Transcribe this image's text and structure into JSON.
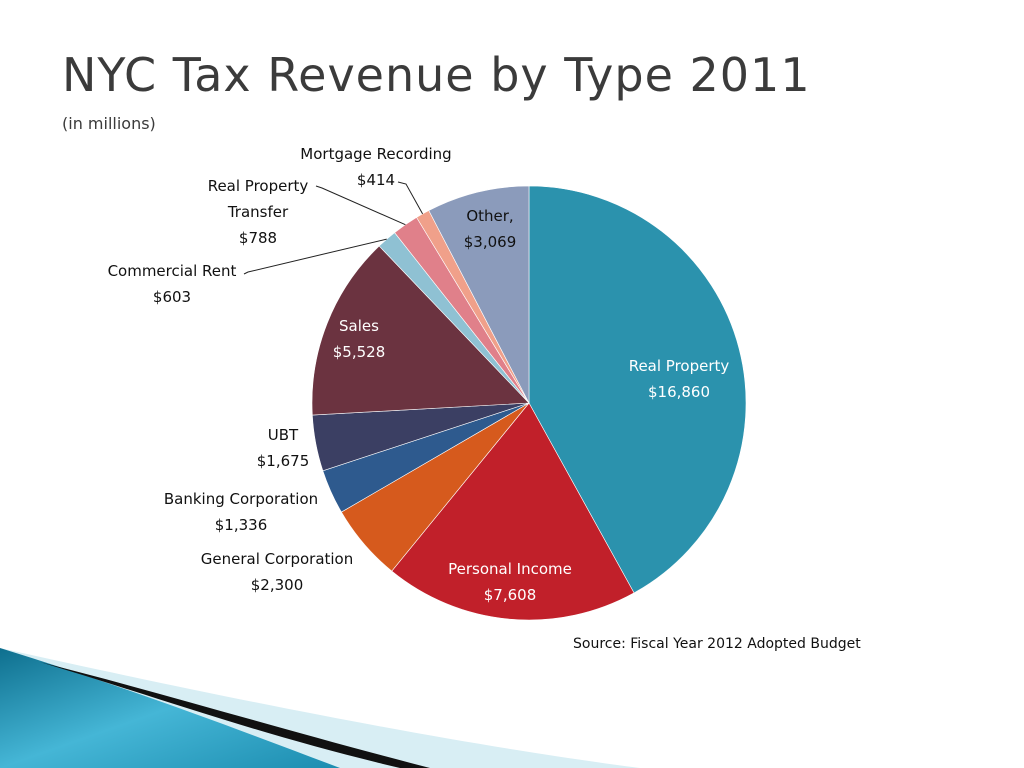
{
  "slide": {
    "title": "NYC Tax Revenue by Type 2011",
    "subtitle": "(in millions)",
    "source": "Source: Fiscal Year 2012 Adopted Budget"
  },
  "chart_data": {
    "type": "pie",
    "title": "NYC Tax Revenue by Type 2011",
    "unit": "$ millions",
    "start_angle": "12 o'clock, clockwise",
    "slices": [
      {
        "label": "Real Property",
        "value": 16860,
        "display": "$16,860",
        "color": "#2b92ad"
      },
      {
        "label": "Personal Income",
        "value": 7608,
        "display": "$7,608",
        "color": "#c1202a"
      },
      {
        "label": "General Corporation",
        "value": 2300,
        "display": "$2,300",
        "color": "#d65a1d"
      },
      {
        "label": "Banking Corporation",
        "value": 1336,
        "display": "$1,336",
        "color": "#2e5a8e"
      },
      {
        "label": "UBT",
        "value": 1675,
        "display": "$1,675",
        "color": "#3b3f63"
      },
      {
        "label": "Sales",
        "value": 5528,
        "display": "$5,528",
        "color": "#6b3340"
      },
      {
        "label": "Commercial Rent",
        "value": 603,
        "display": "$603",
        "color": "#8fc1d3"
      },
      {
        "label": "Real Property Transfer",
        "value": 788,
        "display": "$788",
        "color": "#e0808a"
      },
      {
        "label": "Mortgage Recording",
        "value": 414,
        "display": "$414",
        "color": "#f0a08a"
      },
      {
        "label": "Other,",
        "value": 3069,
        "display": "$3,069",
        "color": "#8b9bbb"
      }
    ]
  }
}
